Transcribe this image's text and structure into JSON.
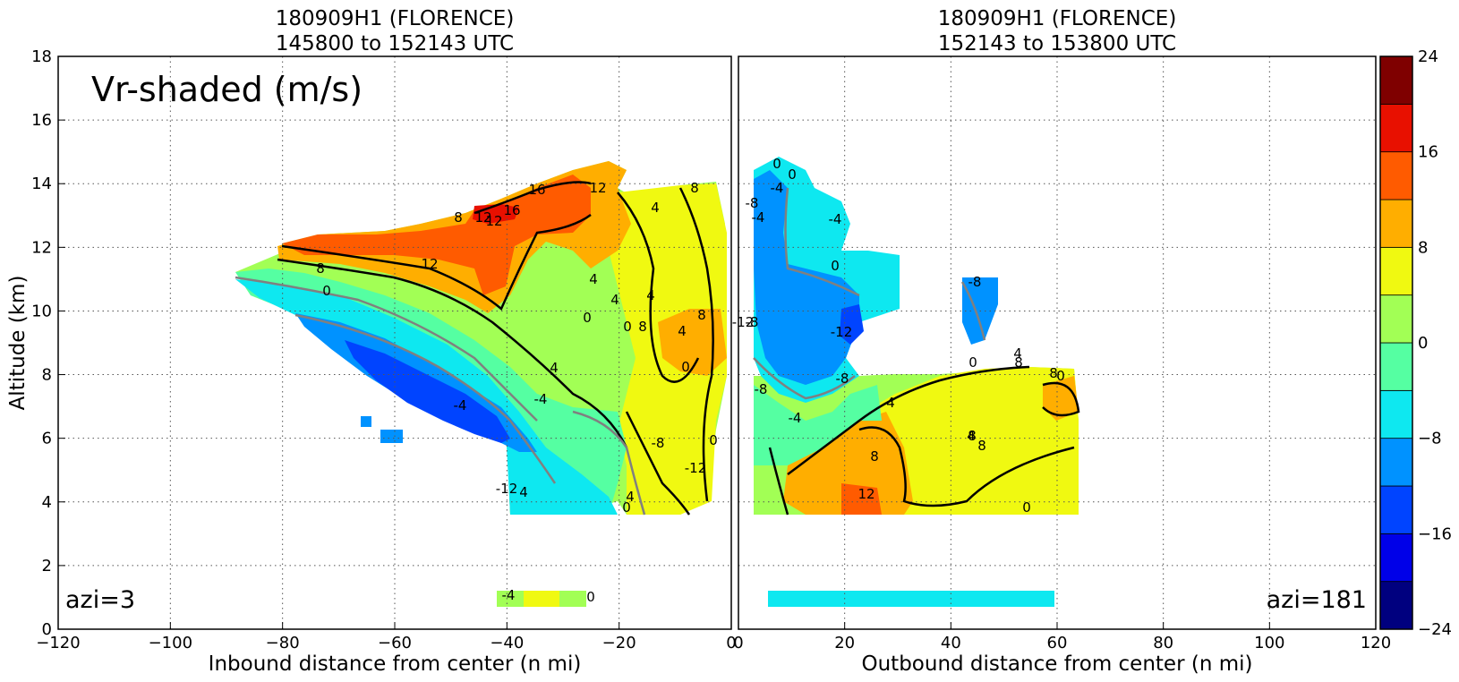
{
  "chart_data": [
    {
      "type": "heatmap",
      "panel": "left",
      "title_line1": "180909H1 (FLORENCE)",
      "title_line2": "145800 to 152143 UTC",
      "xlabel": "Inbound distance from center (n mi)",
      "ylabel": "Altitude (km)",
      "xlim": [
        -120,
        0
      ],
      "ylim": [
        0,
        18
      ],
      "x_ticks": [
        -120,
        -100,
        -80,
        -60,
        -40,
        -20,
        0
      ],
      "y_ticks": [
        0,
        2,
        4,
        6,
        8,
        10,
        12,
        14,
        16,
        18
      ],
      "grid": true,
      "field_label": "Vr-shaded (m/s)",
      "azimuth_label": "azi=3",
      "contour_labels": [
        "16",
        "16",
        "12",
        "12",
        "12",
        "12",
        "8",
        "8",
        "8",
        "8",
        "4",
        "4",
        "4",
        "4",
        "4",
        "4",
        "0",
        "0",
        "0",
        "0",
        "0",
        "-4",
        "-4",
        "-8",
        "-12",
        "-12",
        "8",
        "4",
        "0",
        "4",
        "0",
        "-4"
      ]
    },
    {
      "type": "heatmap",
      "panel": "right",
      "title_line1": "180909H1 (FLORENCE)",
      "title_line2": "152143 to 153800 UTC",
      "xlabel": "Outbound distance from center (n mi)",
      "ylabel": "",
      "xlim": [
        0,
        120
      ],
      "ylim": [
        0,
        18
      ],
      "x_ticks": [
        0,
        20,
        40,
        60,
        80,
        100,
        120
      ],
      "grid": true,
      "azimuth_label": "azi=181",
      "contour_labels": [
        "0",
        "0",
        "-4",
        "-8",
        "-4",
        "0",
        "-4",
        "-8",
        "-12",
        "-12",
        "-8",
        "-8",
        "-8",
        "-4",
        "0",
        "4",
        "0",
        "8",
        "4",
        "8",
        "8",
        "12",
        "4",
        "0",
        "8",
        "8"
      ]
    }
  ],
  "colorbar": {
    "ticks": [
      "24",
      "16",
      "8",
      "0",
      "−8",
      "−16",
      "−24"
    ],
    "levels": [
      -24,
      -20,
      -16,
      -12,
      -8,
      -4,
      0,
      4,
      8,
      12,
      16,
      20,
      24
    ],
    "colors": [
      "#00007f",
      "#0000e8",
      "#0044ff",
      "#0092ff",
      "#0ee8f0",
      "#55ffa2",
      "#a2ff55",
      "#f0f911",
      "#ffae00",
      "#ff5b00",
      "#e81000",
      "#7f0000"
    ]
  },
  "colors": {
    "contour": "#000000",
    "zero_contour": "#808080"
  }
}
